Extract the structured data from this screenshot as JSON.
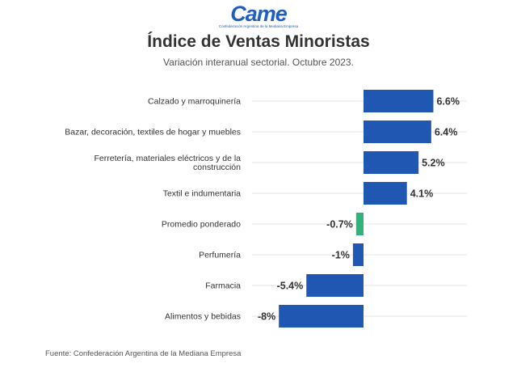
{
  "logo": {
    "text": "Came",
    "subtext": "Confederación Argentina de la Mediana Empresa"
  },
  "chart_data": {
    "type": "bar",
    "orientation": "horizontal",
    "title": "Índice de Ventas Minoristas",
    "subtitle": "Variación interanual sectorial. Octubre 2023.",
    "categories": [
      "Calzado y marroquinería",
      "Bazar, decoración, textiles de hogar y muebles",
      "Ferretería, materiales eléctricos y de la construcción",
      "Textil e indumentaria",
      "Promedio ponderado",
      "Perfumería",
      "Farmacia",
      "Alimentos y bebidas"
    ],
    "category_lines": [
      [
        "Calzado y marroquinería"
      ],
      [
        "Bazar, decoración, textiles de hogar y muebles"
      ],
      [
        "Ferretería, materiales eléctricos y de la",
        "construcción"
      ],
      [
        "Textil e indumentaria"
      ],
      [
        "Promedio ponderado"
      ],
      [
        "Perfumería"
      ],
      [
        "Farmacia"
      ],
      [
        "Alimentos y bebidas"
      ]
    ],
    "values": [
      6.6,
      6.4,
      5.2,
      4.1,
      -0.7,
      -1,
      -5.4,
      -8
    ],
    "value_labels": [
      "6.6%",
      "6.4%",
      "5.2%",
      "4.1%",
      "-0.7%",
      "-1%",
      "-5.4%",
      "-8%"
    ],
    "highlight_category": "Promedio ponderado",
    "grid": true,
    "legend": "none"
  },
  "colors": {
    "bar": "#1f57b3",
    "highlight": "#2db37b",
    "grid": "#e3e3e3",
    "brand": "#1f5fbf"
  },
  "source": "Fuente: Confederación Argentina de la Mediana Empresa"
}
